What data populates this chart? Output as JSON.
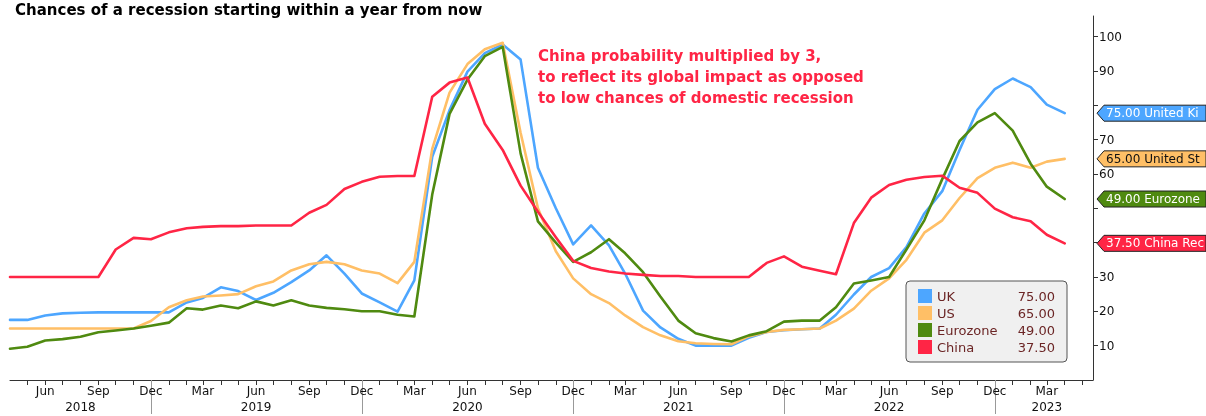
{
  "chart_data": {
    "type": "line",
    "title": "Chances of a recession starting within a year from now",
    "x": [
      "2018-04",
      "2018-05",
      "2018-06",
      "2018-07",
      "2018-08",
      "2018-09",
      "2018-10",
      "2018-11",
      "2018-12",
      "2019-01",
      "2019-02",
      "2019-03",
      "2019-04",
      "2019-05",
      "2019-06",
      "2019-07",
      "2019-08",
      "2019-09",
      "2019-10",
      "2019-11",
      "2019-12",
      "2020-01",
      "2020-02",
      "2020-03",
      "2020-04",
      "2020-05",
      "2020-06",
      "2020-07",
      "2020-08",
      "2020-09",
      "2020-10",
      "2020-11",
      "2020-12",
      "2021-01",
      "2021-02",
      "2021-03",
      "2021-04",
      "2021-05",
      "2021-06",
      "2021-07",
      "2021-08",
      "2021-09",
      "2021-10",
      "2021-11",
      "2021-12",
      "2022-01",
      "2022-02",
      "2022-03",
      "2022-04",
      "2022-05",
      "2022-06",
      "2022-07",
      "2022-08",
      "2022-09",
      "2022-10",
      "2022-11",
      "2022-12",
      "2023-01",
      "2023-02",
      "2023-03",
      "2023-04"
    ],
    "series": [
      {
        "name": "UK",
        "color": "#4da6ff",
        "values": [
          17.5,
          17.5,
          18.8,
          19.4,
          19.6,
          19.7,
          19.7,
          19.7,
          19.7,
          19.7,
          22.6,
          23.9,
          27,
          25.9,
          23.3,
          25.4,
          28.5,
          31.9,
          36.3,
          31,
          25.2,
          22.6,
          19.9,
          29,
          65,
          78.6,
          89.8,
          95.2,
          97.7,
          93.3,
          61.8,
          50,
          39.5,
          45,
          39.2,
          31,
          20.2,
          15.3,
          12,
          10,
          10,
          10,
          12.3,
          14,
          14.5,
          14.8,
          15,
          19,
          24.9,
          30,
          32.6,
          38.7,
          48.5,
          55,
          67,
          78.7,
          84.7,
          87.8,
          85.3,
          80.2,
          77.7
        ]
      },
      {
        "name": "US",
        "color": "#ffbf66",
        "values": [
          15,
          15,
          15,
          15,
          15,
          15,
          15,
          15,
          17.2,
          21.2,
          23.2,
          24.3,
          24.6,
          25,
          27.3,
          28.7,
          31.9,
          33.7,
          34.4,
          33.7,
          31.9,
          31,
          28.2,
          34.4,
          67.3,
          83.7,
          92,
          96.3,
          98.2,
          72,
          50,
          37.5,
          29.6,
          25,
          22.4,
          18.8,
          15.4,
          13,
          11.3,
          10.7,
          10.5,
          10.4,
          12.7,
          14,
          14.6,
          14.8,
          15,
          17.3,
          20.8,
          26,
          29.6,
          35,
          42.9,
          46.5,
          53,
          58.8,
          61.8,
          63.3,
          61.8,
          63.6,
          64.4
        ]
      },
      {
        "name": "Eurozone",
        "color": "#4f8a10",
        "values": [
          9.1,
          9.7,
          11.5,
          11.9,
          12.6,
          13.9,
          14.4,
          15,
          15.8,
          16.7,
          20.9,
          20.5,
          21.7,
          20.9,
          22.9,
          21.7,
          23.2,
          21.7,
          21,
          20.6,
          20,
          20,
          19,
          18.5,
          54,
          77.5,
          87.5,
          94.3,
          97,
          66,
          46.2,
          40,
          34.4,
          37.2,
          41,
          36.9,
          31.4,
          24.3,
          17.3,
          13.6,
          12.2,
          11.2,
          13,
          14.2,
          17,
          17.3,
          17.3,
          21.2,
          28.1,
          29,
          30,
          38,
          46.5,
          58.5,
          69.6,
          75,
          77.7,
          72.6,
          63,
          56.3,
          52.7
        ]
      },
      {
        "name": "China",
        "color": "#ff2545",
        "values": [
          30,
          30,
          30,
          30,
          30,
          30,
          38,
          41.4,
          41,
          43,
          44.2,
          44.6,
          44.8,
          44.8,
          45,
          45,
          45,
          48.7,
          51,
          55.6,
          57.7,
          59.2,
          59.4,
          59.4,
          82.5,
          86.6,
          88.1,
          74.6,
          67,
          56.6,
          49,
          41.6,
          34.7,
          32.6,
          31.6,
          31,
          30.6,
          30.3,
          30.3,
          30,
          30,
          30,
          30,
          34.1,
          36,
          33,
          31.8,
          30.8,
          45.7,
          53.1,
          56.8,
          58.3,
          59.1,
          59.5,
          56,
          54.5,
          49.9,
          47.4,
          46.2,
          42.3,
          39.8
        ]
      }
    ],
    "xlim": [
      "2018-04",
      "2023-05-20"
    ],
    "xticks": [
      {
        "value": "2018-05",
        "label": null
      },
      {
        "value": "2018-06",
        "label": "Jun"
      },
      {
        "value": "2018-07",
        "label": null
      },
      {
        "value": "2018-08",
        "label": null
      },
      {
        "value": "2018-09",
        "label": "Sep"
      },
      {
        "value": "2018-10",
        "label": null
      },
      {
        "value": "2018-11",
        "label": null
      },
      {
        "value": "2018-12",
        "label": "Dec"
      },
      {
        "value": "2019-01",
        "label": null
      },
      {
        "value": "2019-02",
        "label": null
      },
      {
        "value": "2019-03",
        "label": "Mar"
      },
      {
        "value": "2019-04",
        "label": null
      },
      {
        "value": "2019-05",
        "label": null
      },
      {
        "value": "2019-06",
        "label": "Jun"
      },
      {
        "value": "2019-07",
        "label": null
      },
      {
        "value": "2019-08",
        "label": null
      },
      {
        "value": "2019-09",
        "label": "Sep"
      },
      {
        "value": "2019-10",
        "label": null
      },
      {
        "value": "2019-11",
        "label": null
      },
      {
        "value": "2019-12",
        "label": "Dec"
      },
      {
        "value": "2020-01",
        "label": null
      },
      {
        "value": "2020-02",
        "label": null
      },
      {
        "value": "2020-03",
        "label": "Mar"
      },
      {
        "value": "2020-04",
        "label": null
      },
      {
        "value": "2020-05",
        "label": null
      },
      {
        "value": "2020-06",
        "label": "Jun"
      },
      {
        "value": "2020-07",
        "label": null
      },
      {
        "value": "2020-08",
        "label": null
      },
      {
        "value": "2020-09",
        "label": "Sep"
      },
      {
        "value": "2020-10",
        "label": null
      },
      {
        "value": "2020-11",
        "label": null
      },
      {
        "value": "2020-12",
        "label": "Dec"
      },
      {
        "value": "2021-01",
        "label": null
      },
      {
        "value": "2021-02",
        "label": null
      },
      {
        "value": "2021-03",
        "label": "Mar"
      },
      {
        "value": "2021-04",
        "label": null
      },
      {
        "value": "2021-05",
        "label": null
      },
      {
        "value": "2021-06",
        "label": "Jun"
      },
      {
        "value": "2021-07",
        "label": null
      },
      {
        "value": "2021-08",
        "label": null
      },
      {
        "value": "2021-09",
        "label": "Sep"
      },
      {
        "value": "2021-10",
        "label": null
      },
      {
        "value": "2021-11",
        "label": null
      },
      {
        "value": "2021-12",
        "label": "Dec"
      },
      {
        "value": "2022-01",
        "label": null
      },
      {
        "value": "2022-02",
        "label": null
      },
      {
        "value": "2022-03",
        "label": "Mar"
      },
      {
        "value": "2022-04",
        "label": null
      },
      {
        "value": "2022-05",
        "label": null
      },
      {
        "value": "2022-06",
        "label": "Jun"
      },
      {
        "value": "2022-07",
        "label": null
      },
      {
        "value": "2022-08",
        "label": null
      },
      {
        "value": "2022-09",
        "label": "Sep"
      },
      {
        "value": "2022-10",
        "label": null
      },
      {
        "value": "2022-11",
        "label": null
      },
      {
        "value": "2022-12",
        "label": "Dec"
      },
      {
        "value": "2023-01",
        "label": null
      },
      {
        "value": "2023-02",
        "label": null
      },
      {
        "value": "2023-03",
        "label": "Mar"
      },
      {
        "value": "2023-04",
        "label": null
      },
      {
        "value": "2023-05",
        "label": null
      }
    ],
    "x2lim": [
      "2018-04",
      "2023-05-20"
    ],
    "x2ticks": [
      {
        "value": "2018-08",
        "label": "2018"
      },
      {
        "value": "2018-12",
        "label": null
      },
      {
        "value": "2019-06",
        "label": "2019"
      },
      {
        "value": "2019-12",
        "label": null
      },
      {
        "value": "2020-06",
        "label": "2020"
      },
      {
        "value": "2020-12",
        "label": null
      },
      {
        "value": "2021-06",
        "label": "2021"
      },
      {
        "value": "2021-12",
        "label": null
      },
      {
        "value": "2022-06",
        "label": "2022"
      },
      {
        "value": "2022-12",
        "label": null
      },
      {
        "value": "2023-03",
        "label": "2023"
      }
    ],
    "ylim": [
      0,
      106
    ],
    "yticks": [
      10,
      20,
      30,
      {
        "value": 40,
        "label": null
      },
      {
        "value": 50,
        "label": null
      },
      60,
      70,
      {
        "value": 80,
        "label": null
      },
      90,
      100
    ],
    "legend": "bottom right",
    "annotations": [
      "China probability multiplied by 3,\nto reflect its global impact as opposed\nto low chances of domestic recession",
      "75.00 United Ki",
      "65.00 United St",
      "49.00 Eurozone",
      "37.50 China Rec",
      "75.00",
      "65.00",
      "49.00",
      "37.50"
    ]
  }
}
